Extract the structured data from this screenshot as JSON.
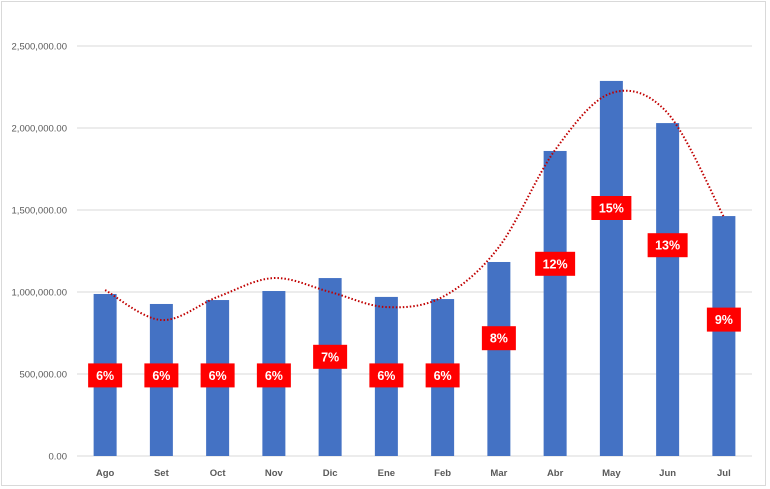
{
  "chart_data": {
    "type": "bar",
    "title": "",
    "xlabel": "",
    "ylabel": "",
    "ylim": [
      0,
      2500000
    ],
    "yticks": [
      "0.00",
      "500,000.00",
      "1,000,000.00",
      "1,500,000.00",
      "2,000,000.00",
      "2,500,000.00"
    ],
    "ytick_values": [
      0,
      500000,
      1000000,
      1500000,
      2000000,
      2500000
    ],
    "grid": true,
    "legend": "none",
    "categories": [
      "Ago",
      "Set",
      "Oct",
      "Nov",
      "Dic",
      "Ene",
      "Feb",
      "Mar",
      "Abr",
      "May",
      "Jun",
      "Jul"
    ],
    "values": [
      988000,
      927000,
      951000,
      1006000,
      1085000,
      970000,
      957000,
      1183000,
      1860000,
      2287000,
      2030000,
      1463000
    ],
    "percent_labels": [
      "6%",
      "6%",
      "6%",
      "6%",
      "7%",
      "6%",
      "6%",
      "8%",
      "12%",
      "15%",
      "13%",
      "9%"
    ],
    "percent_values": [
      6,
      6,
      6,
      6,
      7,
      6,
      6,
      8,
      12,
      15,
      13,
      9
    ],
    "trendline": {
      "type": "polynomial",
      "style": "dotted",
      "values": [
        1012000,
        829000,
        970000,
        1085000,
        1000000,
        908000,
        970000,
        1274000,
        1866000,
        2213000,
        2091000,
        1457000
      ]
    },
    "colors": {
      "bar": "#4472c4",
      "label_bg": "#ff0000",
      "label_text": "#ffffff",
      "trendline": "#c00000",
      "grid": "#d9d9d9",
      "axis_text": "#595959"
    }
  }
}
